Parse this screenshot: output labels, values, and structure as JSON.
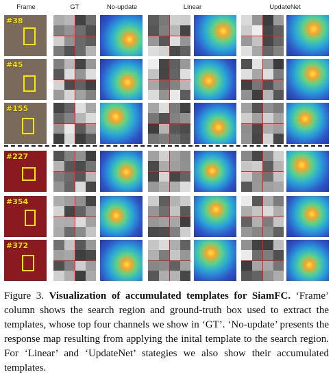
{
  "headers": {
    "frame": "Frame",
    "gt": "GT",
    "no_update": "No-update",
    "linear": "Linear",
    "updatenet": "UpdateNet"
  },
  "rows": [
    {
      "frame": "#38"
    },
    {
      "frame": "#45"
    },
    {
      "frame": "#155"
    },
    {
      "frame": "#227"
    },
    {
      "frame": "#354"
    },
    {
      "frame": "#372"
    }
  ],
  "caption": {
    "label": "Figure 3.",
    "bold_title": "Visualization of accumulated templates for SiamFC.",
    "body": "‘Frame’ column shows the search region and ground-truth box used to extract the templates, whose top four channels we show in ‘GT’. ‘No-update’ presents the response map resulting from applying the inital template to the search region. For ‘Linear’ and ‘UpdateNet’ stategies we also show their accumulated templates."
  },
  "colors": {
    "frame_label": "#ffe200",
    "gt_box": "#ffe600",
    "split_lines": "#e02020"
  }
}
